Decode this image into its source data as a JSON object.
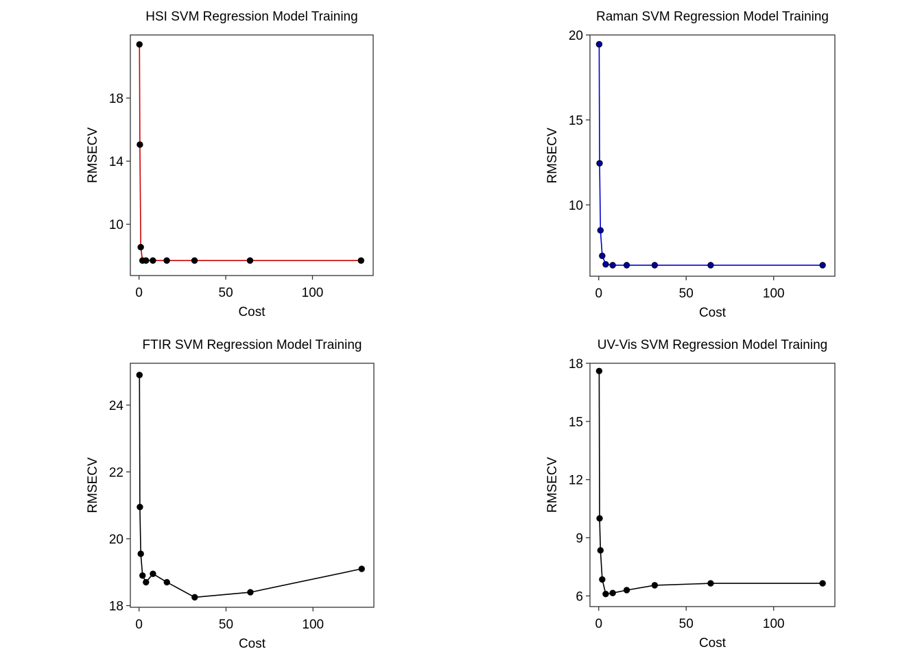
{
  "chart_data": [
    {
      "type": "line",
      "title": "HSI SVM Regression Model Training",
      "xlabel": "Cost",
      "ylabel": "RMSECV",
      "line_color": "#CC0000",
      "point_color": "#000000",
      "xlim": [
        -5,
        135
      ],
      "ylim": [
        6.75,
        22.0
      ],
      "xticks": [
        0,
        50,
        100
      ],
      "yticks": [
        10,
        14,
        18
      ],
      "x": [
        0.25,
        0.5,
        1,
        2,
        4,
        8,
        16,
        32,
        64,
        128
      ],
      "y": [
        21.4,
        15.05,
        8.55,
        7.7,
        7.7,
        7.7,
        7.7,
        7.7,
        7.7,
        7.7
      ]
    },
    {
      "type": "line",
      "title": "Raman SVM Regression Model Training",
      "xlabel": "Cost",
      "ylabel": "RMSECV",
      "line_color": "#0000CC",
      "point_color": "#000099",
      "xlim": [
        -5,
        135
      ],
      "ylim": [
        5.8,
        20.0
      ],
      "xticks": [
        0,
        50,
        100
      ],
      "yticks": [
        10,
        15,
        20
      ],
      "x": [
        0.25,
        0.5,
        1,
        2,
        4,
        8,
        16,
        32,
        64,
        128
      ],
      "y": [
        19.45,
        12.45,
        8.5,
        7.0,
        6.5,
        6.45,
        6.45,
        6.45,
        6.45,
        6.45
      ]
    },
    {
      "type": "line",
      "title": "FTIR SVM Regression Model Training",
      "xlabel": "Cost",
      "ylabel": "RMSECV",
      "line_color": "#000000",
      "point_color": "#000000",
      "xlim": [
        -5,
        135
      ],
      "ylim": [
        17.95,
        25.25
      ],
      "xticks": [
        0,
        50,
        100
      ],
      "yticks": [
        18,
        20,
        22,
        24
      ],
      "x": [
        0.25,
        0.5,
        1,
        2,
        4,
        8,
        16,
        32,
        64,
        128
      ],
      "y": [
        24.9,
        20.95,
        19.55,
        18.9,
        18.7,
        18.95,
        18.7,
        18.25,
        18.4,
        19.1
      ]
    },
    {
      "type": "line",
      "title": "UV-Vis SVM Regression Model Training",
      "xlabel": "Cost",
      "ylabel": "RMSECV",
      "line_color": "#000000",
      "point_color": "#000000",
      "xlim": [
        -5,
        135
      ],
      "ylim": [
        5.45,
        18.0
      ],
      "xticks": [
        0,
        50,
        100
      ],
      "yticks": [
        6,
        9,
        12,
        15,
        18
      ],
      "x": [
        0.25,
        0.5,
        1,
        2,
        4,
        8,
        16,
        32,
        64,
        128
      ],
      "y": [
        17.6,
        10.0,
        8.35,
        6.85,
        6.1,
        6.15,
        6.3,
        6.55,
        6.65,
        6.65
      ]
    }
  ]
}
